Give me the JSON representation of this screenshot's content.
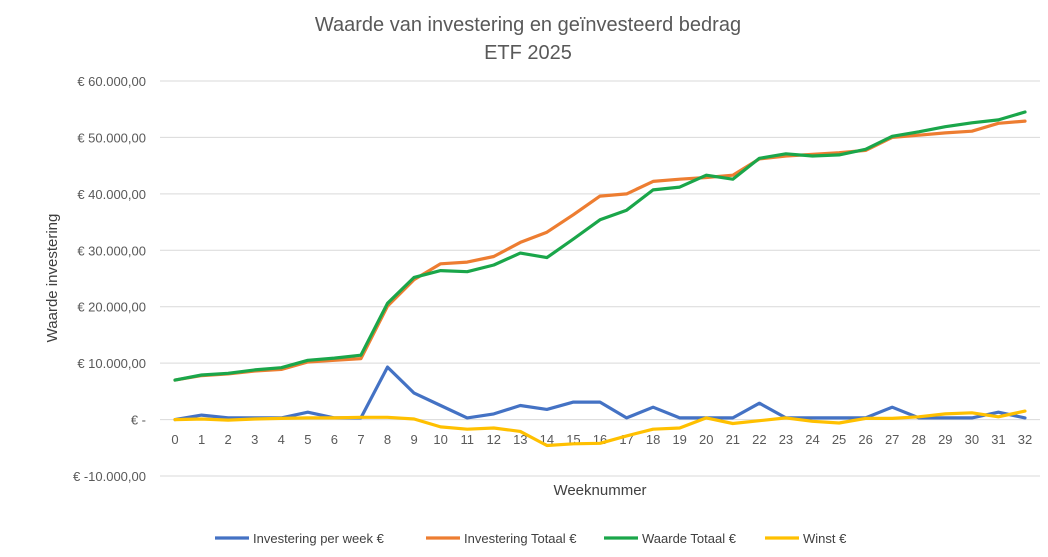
{
  "chart_data": {
    "type": "line",
    "title": "Waarde van investering en geïnvesteerd bedrag",
    "subtitle": "ETF 2025",
    "xlabel": "Weeknummer",
    "ylabel": "Waarde investering",
    "ylim": [
      -10000,
      60000
    ],
    "y_ticks": [
      60000,
      50000,
      40000,
      30000,
      20000,
      10000,
      0,
      -10000
    ],
    "y_tick_labels": [
      "€ 60.000,00",
      "€ 50.000,00",
      "€ 40.000,00",
      "€ 30.000,00",
      "€ 20.000,00",
      "€ 10.000,00",
      "€ -",
      "€ -10.000,00"
    ],
    "x": [
      0,
      1,
      2,
      3,
      4,
      5,
      6,
      7,
      8,
      9,
      10,
      11,
      12,
      13,
      14,
      15,
      16,
      17,
      18,
      19,
      20,
      21,
      22,
      23,
      24,
      25,
      26,
      27,
      28,
      29,
      30,
      31,
      32
    ],
    "x_tick_labels": [
      "0",
      "1",
      "2",
      "3",
      "4",
      "5",
      "6",
      "7",
      "8",
      "9",
      "10",
      "11",
      "12",
      "13",
      "14",
      "15",
      "16",
      "17",
      "18",
      "19",
      "20",
      "21",
      "22",
      "23",
      "24",
      "25",
      "26",
      "27",
      "28",
      "29",
      "30",
      "31",
      "32"
    ],
    "grid": true,
    "legend_position": "bottom",
    "series": [
      {
        "name": "Investering per week €",
        "color": "#4472C4",
        "values": [
          0,
          800,
          300,
          300,
          300,
          1300,
          300,
          300,
          9300,
          4700,
          2500,
          300,
          1000,
          2500,
          1800,
          3100,
          3100,
          300,
          2200,
          300,
          300,
          300,
          2900,
          300,
          300,
          300,
          300,
          2200,
          300,
          300,
          300,
          1300,
          300
        ]
      },
      {
        "name": "Investering Totaal €",
        "color": "#ED7D31",
        "values": [
          7000,
          7800,
          8100,
          8600,
          8900,
          10200,
          10500,
          10800,
          20100,
          24800,
          27600,
          27900,
          28900,
          31400,
          33200,
          36300,
          39600,
          40000,
          42200,
          42600,
          42900,
          43300,
          46200,
          46700,
          47000,
          47300,
          47700,
          50000,
          50400,
          50800,
          51100,
          52500,
          52900
        ]
      },
      {
        "name": "Waarde Totaal €",
        "color": "#1AA64A",
        "values": [
          7000,
          7900,
          8200,
          8800,
          9200,
          10500,
          10900,
          11400,
          20600,
          25200,
          26400,
          26200,
          27400,
          29500,
          28700,
          32000,
          35400,
          37100,
          40700,
          41200,
          43300,
          42600,
          46300,
          47100,
          46700,
          46900,
          47900,
          50200,
          51000,
          51900,
          52600,
          53100,
          54500
        ]
      },
      {
        "name": "Winst €",
        "color": "#FFC000",
        "values": [
          0,
          100,
          -100,
          100,
          200,
          300,
          300,
          400,
          400,
          100,
          -1300,
          -1700,
          -1500,
          -2100,
          -4600,
          -4300,
          -4200,
          -2900,
          -1700,
          -1500,
          300,
          -700,
          -200,
          300,
          -300,
          -600,
          200,
          200,
          500,
          1000,
          1200,
          500,
          1500
        ]
      }
    ]
  }
}
